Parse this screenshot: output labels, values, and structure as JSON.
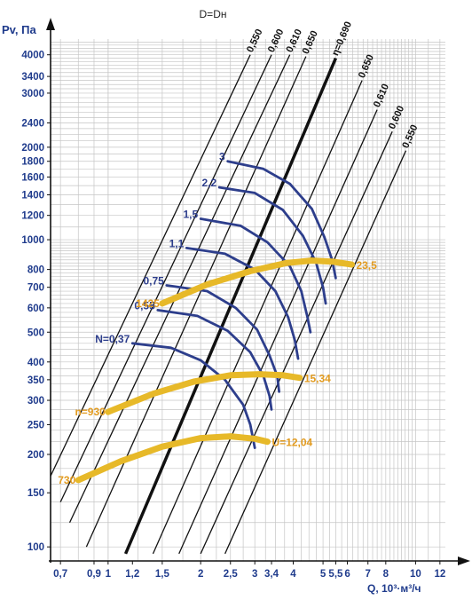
{
  "chart_data": {
    "type": "line",
    "title": "D=Dн",
    "ylabel": "Pv, Па",
    "xlabel": "Q, 10³·м³/ч",
    "x_scale": "log",
    "y_scale": "log",
    "xlim": [
      0.65,
      12.5
    ],
    "ylim": [
      90,
      4500
    ],
    "grid": true,
    "x_ticks": [
      "0,7",
      "0,9",
      "1",
      "1,2",
      "1,5",
      "2",
      "2,5",
      "3",
      "3,4",
      "4",
      "5",
      "5,5",
      "6",
      "7",
      "8",
      "10",
      "12"
    ],
    "x_tick_values": [
      0.7,
      0.9,
      1,
      1.2,
      1.5,
      2,
      2.5,
      3,
      3.4,
      4,
      5,
      5.5,
      6,
      7,
      8,
      10,
      12
    ],
    "y_ticks": [
      "100",
      "150",
      "200",
      "250",
      "300",
      "350",
      "400",
      "500",
      "600",
      "700",
      "800",
      "1000",
      "1200",
      "1400",
      "1600",
      "1800",
      "2000",
      "2400",
      "3000",
      "3400",
      "4000"
    ],
    "y_tick_values": [
      100,
      150,
      200,
      250,
      300,
      350,
      400,
      500,
      600,
      700,
      800,
      1000,
      1200,
      1400,
      1600,
      1800,
      2000,
      2400,
      3000,
      3400,
      4000
    ],
    "efficiency_lines": [
      {
        "label": "0,550",
        "bold": false,
        "points": [
          [
            0.65,
            170
          ],
          [
            2.9,
            4000
          ]
        ]
      },
      {
        "label": "0,600",
        "bold": false,
        "points": [
          [
            0.7,
            140
          ],
          [
            3.4,
            4000
          ]
        ]
      },
      {
        "label": "0,610",
        "bold": false,
        "points": [
          [
            0.75,
            120
          ],
          [
            3.9,
            4000
          ]
        ]
      },
      {
        "label": "0,650",
        "bold": false,
        "points": [
          [
            0.85,
            100
          ],
          [
            4.4,
            3950
          ]
        ]
      },
      {
        "label": "η=0,690",
        "bold": true,
        "points": [
          [
            1.14,
            95
          ],
          [
            5.5,
            3900
          ]
        ]
      },
      {
        "label": "0,650",
        "bold": false,
        "points": [
          [
            1.4,
            95
          ],
          [
            6.7,
            3300
          ]
        ]
      },
      {
        "label": "0,610",
        "bold": false,
        "points": [
          [
            1.7,
            95
          ],
          [
            7.5,
            2650
          ]
        ]
      },
      {
        "label": "0,600",
        "bold": false,
        "points": [
          [
            2.0,
            95
          ],
          [
            8.4,
            2250
          ]
        ]
      },
      {
        "label": "0,550",
        "bold": false,
        "points": [
          [
            2.4,
            95
          ],
          [
            9.3,
            1950
          ]
        ]
      }
    ],
    "power_curves": [
      {
        "label": "3",
        "points": [
          [
            2.45,
            1800
          ],
          [
            3.2,
            1700
          ],
          [
            3.9,
            1520
          ],
          [
            4.6,
            1260
          ],
          [
            5.05,
            1020
          ],
          [
            5.35,
            860
          ],
          [
            5.5,
            750
          ]
        ]
      },
      {
        "label": "2,2",
        "points": [
          [
            2.3,
            1480
          ],
          [
            3.0,
            1420
          ],
          [
            3.7,
            1250
          ],
          [
            4.3,
            1030
          ],
          [
            4.75,
            840
          ],
          [
            5.0,
            700
          ],
          [
            5.1,
            620
          ]
        ]
      },
      {
        "label": "1,5",
        "points": [
          [
            2.0,
            1170
          ],
          [
            2.7,
            1110
          ],
          [
            3.3,
            980
          ],
          [
            3.9,
            820
          ],
          [
            4.25,
            680
          ],
          [
            4.45,
            560
          ],
          [
            4.55,
            500
          ]
        ]
      },
      {
        "label": "1,1",
        "points": [
          [
            1.8,
            940
          ],
          [
            2.4,
            900
          ],
          [
            3.0,
            800
          ],
          [
            3.5,
            680
          ],
          [
            3.85,
            560
          ],
          [
            4.05,
            470
          ],
          [
            4.15,
            410
          ]
        ]
      },
      {
        "label": "0,75",
        "points": [
          [
            1.55,
            710
          ],
          [
            2.1,
            680
          ],
          [
            2.6,
            600
          ],
          [
            3.05,
            510
          ],
          [
            3.35,
            420
          ],
          [
            3.55,
            360
          ],
          [
            3.6,
            320
          ]
        ]
      },
      {
        "label": "0,55",
        "points": [
          [
            1.45,
            590
          ],
          [
            1.95,
            565
          ],
          [
            2.45,
            505
          ],
          [
            2.9,
            430
          ],
          [
            3.2,
            360
          ],
          [
            3.35,
            310
          ],
          [
            3.4,
            280
          ]
        ]
      },
      {
        "label": "N=0,37",
        "points": [
          [
            1.2,
            460
          ],
          [
            1.6,
            445
          ],
          [
            2.0,
            405
          ],
          [
            2.4,
            350
          ],
          [
            2.75,
            290
          ],
          [
            2.9,
            250
          ],
          [
            3.0,
            210
          ]
        ]
      }
    ],
    "speed_curves": [
      {
        "label": "730",
        "end_label": "U=12,04",
        "points": [
          [
            0.8,
            165
          ],
          [
            1.1,
            190
          ],
          [
            1.5,
            212
          ],
          [
            2.0,
            226
          ],
          [
            2.5,
            229
          ],
          [
            3.0,
            225
          ],
          [
            3.3,
            220
          ]
        ]
      },
      {
        "label": "n=930",
        "end_label": "15,34",
        "points": [
          [
            1.0,
            275
          ],
          [
            1.4,
            315
          ],
          [
            1.9,
            345
          ],
          [
            2.5,
            362
          ],
          [
            3.1,
            365
          ],
          [
            3.7,
            362
          ],
          [
            4.2,
            355
          ]
        ]
      },
      {
        "label": "1425",
        "end_label": "23,5",
        "points": [
          [
            1.5,
            620
          ],
          [
            2.1,
            715
          ],
          [
            2.9,
            790
          ],
          [
            3.8,
            840
          ],
          [
            4.6,
            855
          ],
          [
            5.4,
            848
          ],
          [
            6.2,
            830
          ]
        ]
      }
    ],
    "colors": {
      "power": "#2d3e8c",
      "speed": "#e7b929",
      "speed_text": "#e29b1f",
      "axis_text": "#1f3b8c",
      "grid": "#c5c5c5",
      "line": "#111111"
    }
  }
}
